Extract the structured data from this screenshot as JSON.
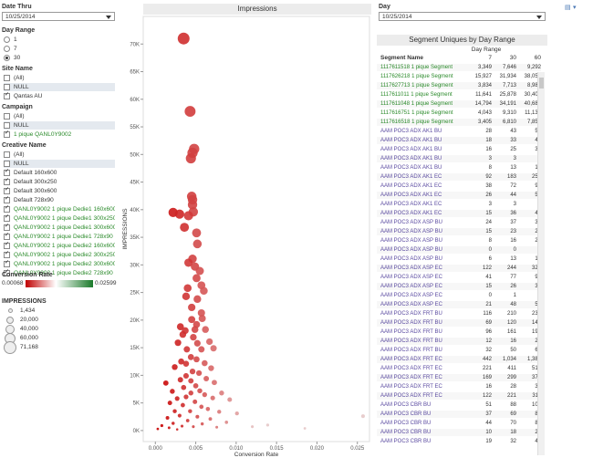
{
  "filters": {
    "date_thru": {
      "title": "Date Thru",
      "value": "10/25/2014"
    },
    "day_range": {
      "title": "Day Range",
      "options": [
        "1",
        "7",
        "30"
      ],
      "selected": "30"
    },
    "site_name": {
      "title": "Site Name",
      "options": [
        {
          "label": "(All)",
          "checked": false
        },
        {
          "label": "NULL",
          "checked": false
        },
        {
          "label": "Qantas AU",
          "checked": true
        }
      ]
    },
    "campaign": {
      "title": "Campaign",
      "options": [
        {
          "label": "(All)",
          "checked": false
        },
        {
          "label": "NULL",
          "checked": false
        },
        {
          "label": "1 pique QANL0Y9002",
          "checked": true
        }
      ]
    },
    "creative_name": {
      "title": "Creative Name",
      "options": [
        {
          "label": "(All)",
          "checked": false
        },
        {
          "label": "NULL",
          "checked": false
        },
        {
          "label": "Default 160x600",
          "checked": true
        },
        {
          "label": "Default 300x250",
          "checked": true
        },
        {
          "label": "Default 300x600",
          "checked": true
        },
        {
          "label": "Default 728x90",
          "checked": true
        },
        {
          "label": "QANL0Y9002 1 pique Dedie1 160x600",
          "checked": true
        },
        {
          "label": "QANL0Y9002 1 pique Dedie1 300x250",
          "checked": true
        },
        {
          "label": "QANL0Y9002 1 pique Dedie1 300x600",
          "checked": true
        },
        {
          "label": "QANL0Y9002 1 pique Dedie1 728x90",
          "checked": true
        },
        {
          "label": "QANL0Y9002 1 pique Dedie2 160x600",
          "checked": true
        },
        {
          "label": "QANL0Y9002 1 pique Dedie2 300x250",
          "checked": true
        },
        {
          "label": "QANL0Y9002 1 pique Dedie2 300x600",
          "checked": true
        },
        {
          "label": "QANL0Y9002 1 pique Dedie2 728x90",
          "checked": true
        }
      ]
    },
    "conversion_rate": {
      "title": "Conversion Rate",
      "min": "0.00068",
      "max": "0.02599",
      "colors": [
        "#c00000",
        "#ffffff",
        "#1a7a2a"
      ]
    },
    "impressions_legend": {
      "title": "IMPRESSIONS",
      "items": [
        "1,434",
        "20,000",
        "40,000",
        "60,000",
        "71,168"
      ]
    }
  },
  "chart_data": {
    "type": "scatter",
    "title": "Impressions",
    "xlabel": "Conversion Rate",
    "ylabel": "IMPRESSIONS",
    "xlim": [
      -0.0015,
      0.0265
    ],
    "ylim": [
      -2000,
      75000
    ],
    "x_ticks": [
      "0.000",
      "0.005",
      "0.010",
      "0.015",
      "0.020",
      "0.025"
    ],
    "y_ticks": [
      "0K",
      "5K",
      "10K",
      "15K",
      "20K",
      "25K",
      "30K",
      "35K",
      "40K",
      "45K",
      "50K",
      "55K",
      "60K",
      "65K",
      "70K"
    ],
    "points": [
      [
        0.0035,
        71000
      ],
      [
        0.0043,
        57800
      ],
      [
        0.0048,
        51000
      ],
      [
        0.0046,
        50300
      ],
      [
        0.0044,
        49300
      ],
      [
        0.0045,
        42400
      ],
      [
        0.0046,
        41800
      ],
      [
        0.0046,
        40900
      ],
      [
        0.0047,
        39600
      ],
      [
        0.0041,
        38900
      ],
      [
        0.0022,
        39500
      ],
      [
        0.003,
        39200
      ],
      [
        0.0036,
        36800
      ],
      [
        0.0051,
        35800
      ],
      [
        0.0052,
        33800
      ],
      [
        0.0046,
        31100
      ],
      [
        0.0049,
        29700
      ],
      [
        0.0041,
        30400
      ],
      [
        0.0055,
        28900
      ],
      [
        0.0051,
        27600
      ],
      [
        0.0057,
        26300
      ],
      [
        0.004,
        25800
      ],
      [
        0.006,
        25300
      ],
      [
        0.0038,
        24300
      ],
      [
        0.0052,
        23800
      ],
      [
        0.0045,
        22300
      ],
      [
        0.0057,
        21300
      ],
      [
        0.0058,
        20300
      ],
      [
        0.0045,
        20100
      ],
      [
        0.0051,
        19200
      ],
      [
        0.0031,
        18800
      ],
      [
        0.0037,
        18100
      ],
      [
        0.0049,
        18300
      ],
      [
        0.0062,
        18300
      ],
      [
        0.0034,
        17400
      ],
      [
        0.0047,
        16900
      ],
      [
        0.0052,
        15800
      ],
      [
        0.0067,
        16100
      ],
      [
        0.0028,
        15900
      ],
      [
        0.0057,
        14700
      ],
      [
        0.0039,
        14700
      ],
      [
        0.0072,
        14900
      ],
      [
        0.0044,
        13300
      ],
      [
        0.0051,
        12900
      ],
      [
        0.0032,
        12500
      ],
      [
        0.0038,
        12100
      ],
      [
        0.0061,
        12200
      ],
      [
        0.0069,
        11300
      ],
      [
        0.0024,
        11500
      ],
      [
        0.0046,
        10700
      ],
      [
        0.0054,
        10400
      ],
      [
        0.0038,
        9900
      ],
      [
        0.0031,
        9200
      ],
      [
        0.0044,
        9000
      ],
      [
        0.0063,
        9400
      ],
      [
        0.0073,
        8700
      ],
      [
        0.0013,
        8600
      ],
      [
        0.005,
        8100
      ],
      [
        0.0035,
        7800
      ],
      [
        0.0055,
        7200
      ],
      [
        0.0082,
        6800
      ],
      [
        0.0021,
        7100
      ],
      [
        0.0044,
        6800
      ],
      [
        0.0061,
        6500
      ],
      [
        0.0038,
        6100
      ],
      [
        0.0027,
        5800
      ],
      [
        0.0071,
        5900
      ],
      [
        0.0049,
        5200
      ],
      [
        0.0092,
        5600
      ],
      [
        0.0018,
        5000
      ],
      [
        0.0034,
        4600
      ],
      [
        0.0057,
        4300
      ],
      [
        0.0065,
        3900
      ],
      [
        0.0043,
        3500
      ],
      [
        0.0024,
        3500
      ],
      [
        0.0079,
        3400
      ],
      [
        0.0101,
        3100
      ],
      [
        0.003,
        2700
      ],
      [
        0.0052,
        2500
      ],
      [
        0.0015,
        2300
      ],
      [
        0.0068,
        2100
      ],
      [
        0.004,
        1800
      ],
      [
        0.0088,
        1500
      ],
      [
        0.0022,
        1300
      ],
      [
        0.0058,
        1200
      ],
      [
        0.0008,
        900
      ],
      [
        0.0033,
        800
      ],
      [
        0.0047,
        700
      ],
      [
        0.0076,
        600
      ],
      [
        0.0017,
        500
      ],
      [
        0.012,
        700
      ],
      [
        0.0185,
        400
      ],
      [
        0.0139,
        1000
      ],
      [
        0.0257,
        2600
      ],
      [
        0.0003,
        300
      ],
      [
        0.0027,
        200
      ]
    ]
  },
  "right": {
    "day_label": "Day",
    "day_value": "10/25/2014",
    "table_title": "Segment Uniques by Day Range",
    "col_group_header": "Day Range",
    "col_name_header": "Segment Name",
    "columns": [
      "7",
      "30",
      "60"
    ],
    "rows": [
      {
        "name": "1117611518 1 pique Segment",
        "v": [
          "3,349",
          "7,646",
          "9,292"
        ]
      },
      {
        "name": "1117626218 1 pique Segment",
        "v": [
          "15,927",
          "31,934",
          "38,054"
        ]
      },
      {
        "name": "1117627713 1 pique Segment",
        "v": [
          "3,834",
          "7,713",
          "8,989"
        ]
      },
      {
        "name": "1117611011 1 pique Segment",
        "v": [
          "11,641",
          "25,878",
          "30,401"
        ]
      },
      {
        "name": "1117611048 1 pique Segment",
        "v": [
          "14,794",
          "34,191",
          "40,688"
        ]
      },
      {
        "name": "1117616751 1 pique Segment",
        "v": [
          "4,043",
          "9,310",
          "11,135"
        ]
      },
      {
        "name": "1117616518 1 pique Segment",
        "v": [
          "3,405",
          "6,810",
          "7,859"
        ]
      },
      {
        "name": "AAM POC3 ADX AK1 BU",
        "v": [
          "28",
          "43",
          "59"
        ]
      },
      {
        "name": "AAM POC3 ADX AK1 BU",
        "v": [
          "18",
          "33",
          "42"
        ]
      },
      {
        "name": "AAM POC3 ADX AK1 BU",
        "v": [
          "16",
          "25",
          "36"
        ]
      },
      {
        "name": "AAM POC3 ADX AK1 BU",
        "v": [
          "3",
          "3",
          "3"
        ]
      },
      {
        "name": "AAM POC3 ADX AK1 BU",
        "v": [
          "8",
          "13",
          "16"
        ]
      },
      {
        "name": "AAM POC3 ADX AK1 EC",
        "v": [
          "92",
          "183",
          "259"
        ]
      },
      {
        "name": "AAM POC3 ADX AK1 EC",
        "v": [
          "38",
          "72",
          "92"
        ]
      },
      {
        "name": "AAM POC3 ADX AK1 EC",
        "v": [
          "26",
          "44",
          "59"
        ]
      },
      {
        "name": "AAM POC3 ADX AK1 EC",
        "v": [
          "3",
          "3",
          "3"
        ]
      },
      {
        "name": "AAM POC3 ADX AK1 EC",
        "v": [
          "15",
          "36",
          "48"
        ]
      },
      {
        "name": "AAM POC3 ADX ASP BU",
        "v": [
          "24",
          "37",
          "39"
        ]
      },
      {
        "name": "AAM POC3 ADX ASP BU",
        "v": [
          "15",
          "23",
          "28"
        ]
      },
      {
        "name": "AAM POC3 ADX ASP BU",
        "v": [
          "8",
          "16",
          "20"
        ]
      },
      {
        "name": "AAM POC3 ADX ASP BU",
        "v": [
          "0",
          "0",
          "0"
        ]
      },
      {
        "name": "AAM POC3 ADX ASP BU",
        "v": [
          "6",
          "13",
          "13"
        ]
      },
      {
        "name": "AAM POC3 ADX ASP EC",
        "v": [
          "122",
          "244",
          "324"
        ]
      },
      {
        "name": "AAM POC3 ADX ASP EC",
        "v": [
          "41",
          "77",
          "95"
        ]
      },
      {
        "name": "AAM POC3 ADX ASP EC",
        "v": [
          "15",
          "26",
          "33"
        ]
      },
      {
        "name": "AAM POC3 ADX ASP EC",
        "v": [
          "0",
          "1",
          "1"
        ]
      },
      {
        "name": "AAM POC3 ADX ASP EC",
        "v": [
          "21",
          "48",
          "57"
        ]
      },
      {
        "name": "AAM POC3 ADX FRT BU",
        "v": [
          "116",
          "210",
          "239"
        ]
      },
      {
        "name": "AAM POC3 ADX FRT BU",
        "v": [
          "69",
          "120",
          "144"
        ]
      },
      {
        "name": "AAM POC3 ADX FRT BU",
        "v": [
          "96",
          "161",
          "193"
        ]
      },
      {
        "name": "AAM POC3 ADX FRT BU",
        "v": [
          "12",
          "16",
          "20"
        ]
      },
      {
        "name": "AAM POC3 ADX FRT BU",
        "v": [
          "32",
          "50",
          "66"
        ]
      },
      {
        "name": "AAM POC3 ADX FRT EC",
        "v": [
          "442",
          "1,034",
          "1,386"
        ]
      },
      {
        "name": "AAM POC3 ADX FRT EC",
        "v": [
          "221",
          "411",
          "515"
        ]
      },
      {
        "name": "AAM POC3 ADX FRT EC",
        "v": [
          "169",
          "299",
          "371"
        ]
      },
      {
        "name": "AAM POC3 ADX FRT EC",
        "v": [
          "16",
          "28",
          "33"
        ]
      },
      {
        "name": "AAM POC3 ADX FRT EC",
        "v": [
          "122",
          "221",
          "311"
        ]
      },
      {
        "name": "AAM POC3 CBR BU",
        "v": [
          "51",
          "88",
          "109"
        ]
      },
      {
        "name": "AAM POC3 CBR BU",
        "v": [
          "37",
          "69",
          "83"
        ]
      },
      {
        "name": "AAM POC3 CBR BU",
        "v": [
          "44",
          "70",
          "84"
        ]
      },
      {
        "name": "AAM POC3 CBR BU",
        "v": [
          "10",
          "18",
          "26"
        ]
      },
      {
        "name": "AAM POC3 CBR BU",
        "v": [
          "19",
          "32",
          "41"
        ]
      }
    ]
  }
}
